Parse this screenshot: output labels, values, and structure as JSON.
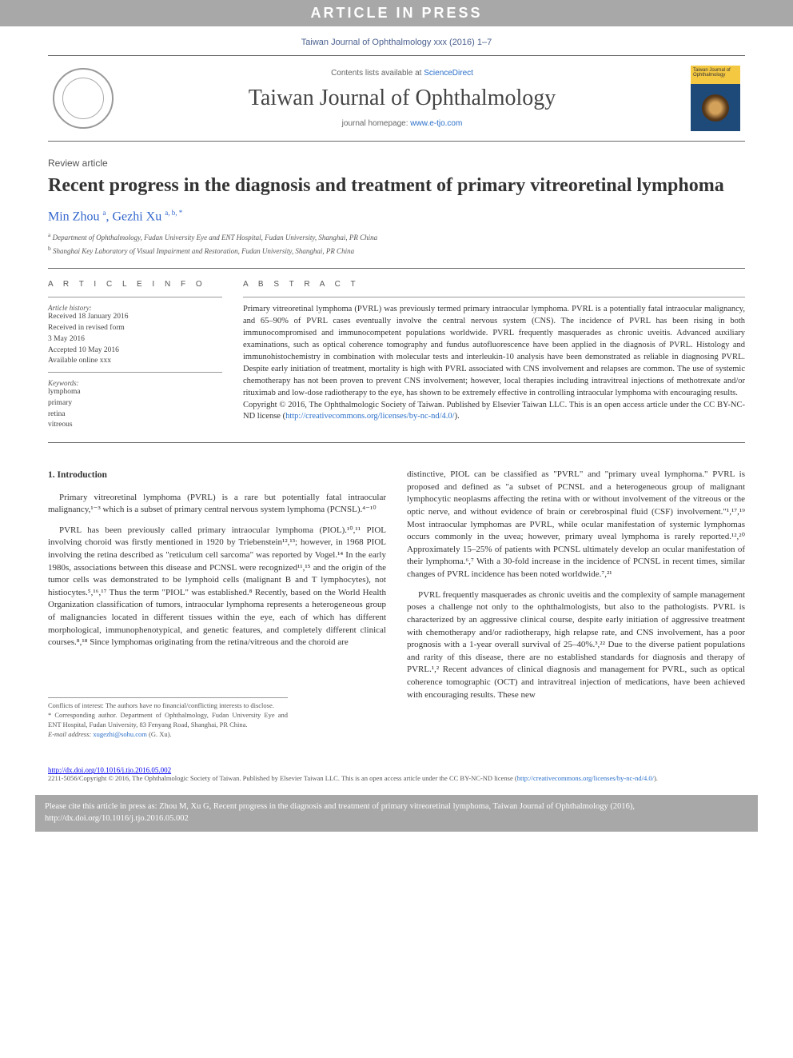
{
  "banner": {
    "in_press": "ARTICLE IN PRESS",
    "journal_ref": "Taiwan Journal of Ophthalmology xxx (2016) 1–7",
    "contents_prefix": "Contents lists available at ",
    "contents_link": "ScienceDirect",
    "journal_name": "Taiwan Journal of Ophthalmology",
    "homepage_prefix": "journal homepage: ",
    "homepage_url": "www.e-tjo.com",
    "cover_text": "Taiwan Journal of Ophthalmology"
  },
  "article": {
    "type": "Review article",
    "title": "Recent progress in the diagnosis and treatment of primary vitreoretinal lymphoma",
    "authors_html": "Min Zhou <sup>a</sup>, Gezhi Xu <sup>a, b, *</sup>",
    "affiliations": [
      "a Department of Ophthalmology, Fudan University Eye and ENT Hospital, Fudan University, Shanghai, PR China",
      "b Shanghai Key Laboratory of Visual Impairment and Restoration, Fudan University, Shanghai, PR China"
    ]
  },
  "info": {
    "heading": "A R T I C L E   I N F O",
    "history_label": "Article history:",
    "history": "Received 18 January 2016\nReceived in revised form\n3 May 2016\nAccepted 10 May 2016\nAvailable online xxx",
    "keywords_label": "Keywords:",
    "keywords": "lymphoma\nprimary\nretina\nvitreous"
  },
  "abstract": {
    "heading": "A B S T R A C T",
    "text": "Primary vitreoretinal lymphoma (PVRL) was previously termed primary intraocular lymphoma. PVRL is a potentially fatal intraocular malignancy, and 65–90% of PVRL cases eventually involve the central nervous system (CNS). The incidence of PVRL has been rising in both immunocompromised and immunocompetent populations worldwide. PVRL frequently masquerades as chronic uveitis. Advanced auxiliary examinations, such as optical coherence tomography and fundus autofluorescence have been applied in the diagnosis of PVRL. Histology and immunohistochemistry in combination with molecular tests and interleukin-10 analysis have been demonstrated as reliable in diagnosing PVRL. Despite early initiation of treatment, mortality is high with PVRL associated with CNS involvement and relapses are common. The use of systemic chemotherapy has not been proven to prevent CNS involvement; however, local therapies including intravitreal injections of methotrexate and/or rituximab and low-dose radiotherapy to the eye, has shown to be extremely effective in controlling intraocular lymphoma with encouraging results.",
    "copyright": "Copyright © 2016, The Ophthalmologic Society of Taiwan. Published by Elsevier Taiwan LLC. This is an open access article under the CC BY-NC-ND license (",
    "license_url": "http://creativecommons.org/licenses/by-nc-nd/4.0/",
    "copyright_close": ")."
  },
  "body": {
    "section1_heading": "1. Introduction",
    "col1_p1": "Primary vitreoretinal lymphoma (PVRL) is a rare but potentially fatal intraocular malignancy,¹⁻³ which is a subset of primary central nervous system lymphoma (PCNSL).⁴⁻¹⁰",
    "col1_p2": "PVRL has been previously called primary intraocular lymphoma (PIOL).¹⁰,¹¹ PIOL involving choroid was firstly mentioned in 1920 by Triebenstein¹²,¹³; however, in 1968 PIOL involving the retina described as \"reticulum cell sarcoma\" was reported by Vogel.¹⁴ In the early 1980s, associations between this disease and PCNSL were recognized¹¹,¹⁵ and the origin of the tumor cells was demonstrated to be lymphoid cells (malignant B and T lymphocytes), not histiocytes.⁵,¹⁶,¹⁷ Thus the term \"PIOL\" was established.⁸ Recently, based on the World Health Organization classification of tumors, intraocular lymphoma represents a heterogeneous group of malignancies located in different tissues within the eye, each of which has different morphological, immunophenotypical, and genetic features, and completely different clinical courses.⁸,¹⁸ Since lymphomas originating from the retina/vitreous and the choroid are",
    "col2_p1": "distinctive, PIOL can be classified as \"PVRL\" and \"primary uveal lymphoma.\" PVRL is proposed and defined as \"a subset of PCNSL and a heterogeneous group of malignant lymphocytic neoplasms affecting the retina with or without involvement of the vitreous or the optic nerve, and without evidence of brain or cerebrospinal fluid (CSF) involvement.\"¹,¹⁷,¹⁹ Most intraocular lymphomas are PVRL, while ocular manifestation of systemic lymphomas occurs commonly in the uvea; however, primary uveal lymphoma is rarely reported.¹²,²⁰ Approximately 15–25% of patients with PCNSL ultimately develop an ocular manifestation of their lymphoma.⁶,⁷ With a 30-fold increase in the incidence of PCNSL in recent times, similar changes of PVRL incidence has been noted worldwide.⁷,²¹",
    "col2_p2": "PVRL frequently masquerades as chronic uveitis and the complexity of sample management poses a challenge not only to the ophthalmologists, but also to the pathologists. PVRL is characterized by an aggressive clinical course, despite early initiation of aggressive treatment with chemotherapy and/or radiotherapy, high relapse rate, and CNS involvement, has a poor prognosis with a 1-year overall survival of 25–40%.³,²² Due to the diverse patient populations and rarity of this disease, there are no established standards for diagnosis and therapy of PVRL.¹,² Recent advances of clinical diagnosis and management for PVRL, such as optical coherence tomographic (OCT) and intravitreal injection of medications, have been achieved with encouraging results. These new"
  },
  "footnotes": {
    "conflicts": "Conflicts of interest: The authors have no financial/conflicting interests to disclose.",
    "corresponding": "* Corresponding author. Department of Ophthalmology, Fudan University Eye and ENT Hospital, Fudan University, 83 Fenyang Road, Shanghai, PR China.",
    "email_label": "E-mail address: ",
    "email": "xugezhi@sohu.com",
    "email_suffix": " (G. Xu)."
  },
  "footer": {
    "doi": "http://dx.doi.org/10.1016/j.tjo.2016.05.002",
    "copyright": "2211-5056/Copyright © 2016, The Ophthalmologic Society of Taiwan. Published by Elsevier Taiwan LLC. This is an open access article under the CC BY-NC-ND license (",
    "license_url": "http://creativecommons.org/licenses/by-nc-nd/4.0/",
    "copyright_close": ").",
    "cite_box": "Please cite this article in press as: Zhou M, Xu G, Recent progress in the diagnosis and treatment of primary vitreoretinal lymphoma, Taiwan Journal of Ophthalmology (2016), http://dx.doi.org/10.1016/j.tjo.2016.05.002"
  },
  "colors": {
    "banner_bg": "#a8a8a8",
    "link": "#2a6fc9",
    "author": "#3366cc",
    "text": "#333333",
    "cover_top": "#f5c842",
    "cover_bottom": "#1e4a7a"
  },
  "typography": {
    "title_size": 24,
    "journal_name_size": 28,
    "body_size": 11,
    "abstract_size": 10.5,
    "footnote_size": 8.5
  }
}
